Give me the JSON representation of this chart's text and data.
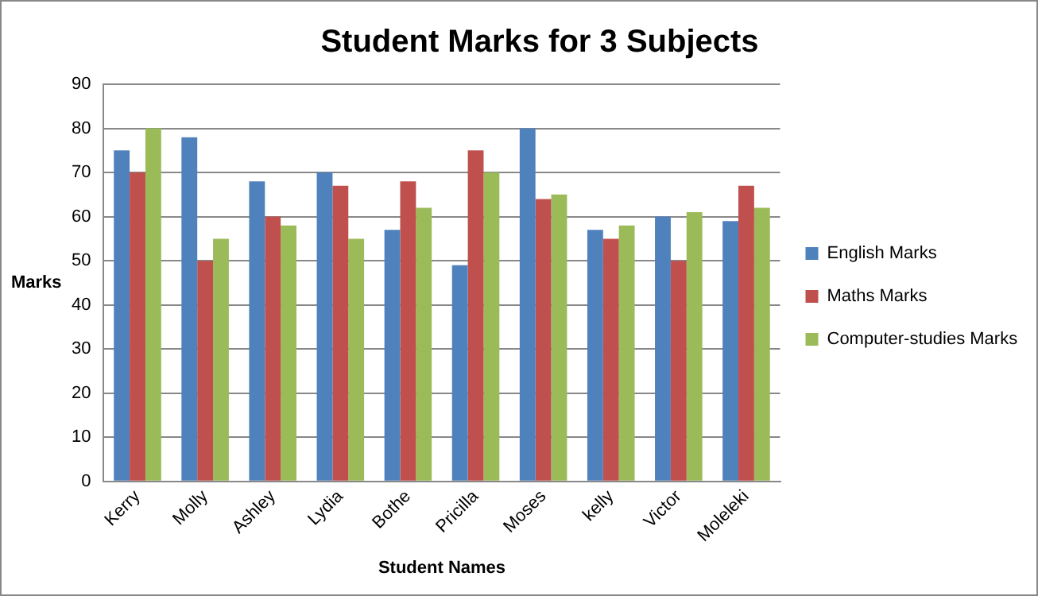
{
  "chart_data": {
    "type": "bar",
    "title": "Student Marks for 3 Subjects",
    "xlabel": "Student Names",
    "ylabel": "Marks",
    "categories": [
      "Kerry",
      "Molly",
      "Ashley",
      "Lydia",
      "Bothe",
      "Pricilla",
      "Moses",
      "kelly",
      "Victor",
      "Moleleki"
    ],
    "series": [
      {
        "name": "English Marks",
        "color": "#4f81bd",
        "values": [
          75,
          78,
          68,
          70,
          57,
          49,
          80,
          57,
          60,
          59
        ]
      },
      {
        "name": "Maths Marks",
        "color": "#c0504d",
        "values": [
          70,
          50,
          60,
          67,
          68,
          75,
          64,
          55,
          50,
          67
        ]
      },
      {
        "name": "Computer-studies Marks",
        "color": "#9bbb59",
        "values": [
          80,
          55,
          58,
          55,
          62,
          70,
          65,
          58,
          61,
          62
        ]
      }
    ],
    "ylim": [
      0,
      90
    ],
    "yticks": [
      0,
      10,
      20,
      30,
      40,
      50,
      60,
      70,
      80,
      90
    ],
    "grid": "y",
    "legend": "right"
  }
}
